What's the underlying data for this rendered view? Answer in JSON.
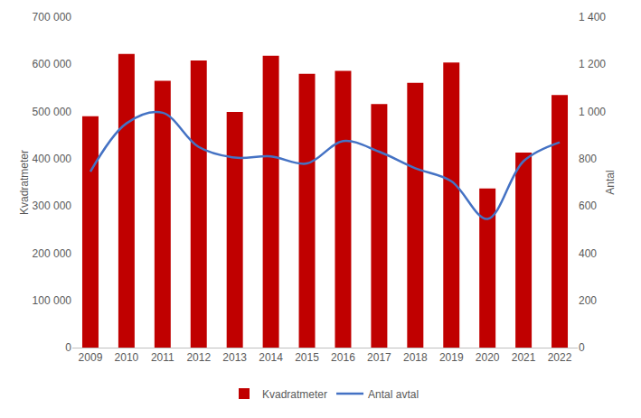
{
  "chart_data": {
    "type": "bar",
    "categories": [
      "2009",
      "2010",
      "2011",
      "2012",
      "2013",
      "2014",
      "2015",
      "2016",
      "2017",
      "2018",
      "2019",
      "2020",
      "2021",
      "2022"
    ],
    "series": [
      {
        "name": "Kvadratmeter",
        "type": "bar",
        "color": "#C00000",
        "axis": "y",
        "values": [
          490000,
          622000,
          565000,
          608000,
          499000,
          618000,
          580000,
          586000,
          516000,
          561000,
          604000,
          337000,
          413000,
          535000
        ]
      },
      {
        "name": "Antal avtal",
        "type": "line",
        "color": "#4472C4",
        "axis": "y2",
        "line_style": "smooth",
        "values": [
          745,
          950,
          995,
          850,
          805,
          810,
          780,
          875,
          830,
          760,
          705,
          545,
          790,
          870
        ]
      }
    ],
    "y_label": "Kvadratmeter",
    "y2_label": "Antal",
    "ylim": [
      0,
      700000
    ],
    "yticks": [
      0,
      {
        "value": 100000,
        "label": "100 000"
      },
      {
        "value": 200000,
        "label": "200 000"
      },
      {
        "value": 300000,
        "label": "300 000"
      },
      {
        "value": 400000,
        "label": "400 000"
      },
      {
        "value": 500000,
        "label": "500 000"
      },
      {
        "value": 600000,
        "label": "600 000"
      },
      {
        "value": 700000,
        "label": "700 000"
      }
    ],
    "y2lim": [
      0,
      1400
    ],
    "y2ticks": [
      0,
      200,
      400,
      600,
      800,
      {
        "value": 1000,
        "label": "1 000"
      },
      {
        "value": 1200,
        "label": "1 200"
      },
      {
        "value": 1400,
        "label": "1 400"
      }
    ],
    "grid": false,
    "legend": "bottom"
  }
}
